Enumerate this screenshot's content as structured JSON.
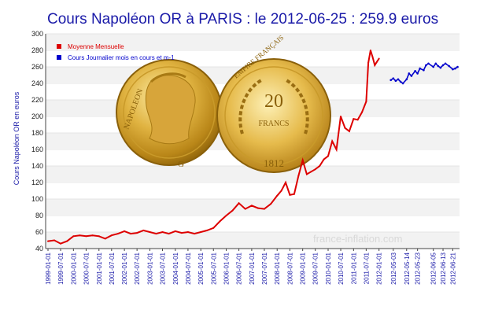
{
  "chart_data": {
    "type": "line",
    "title": "Cours Napoléon OR à PARIS :    le 2012-06-25  :  259.9 euros",
    "ylabel": "Cours Napoléon OR en euros",
    "ylim": [
      40,
      300
    ],
    "yticks": [
      40,
      60,
      80,
      100,
      120,
      140,
      160,
      180,
      200,
      220,
      240,
      260,
      280,
      300
    ],
    "watermark": "france-inflation.com",
    "legend_position": "top-left",
    "grid": "horizontal",
    "x_left_ticks": [
      "1999-01-01",
      "1999-07-01",
      "2000-01-01",
      "2000-07-01",
      "2001-01-01",
      "2001-07-01",
      "2002-01-01",
      "2002-07-01",
      "2003-01-01",
      "2003-07-01",
      "2004-01-01",
      "2004-07-01",
      "2005-01-01",
      "2005-07-01",
      "2006-01-01",
      "2006-07-01",
      "2007-01-01",
      "2007-07-01",
      "2008-01-01",
      "2008-07-01",
      "2009-01-01",
      "2009-07-01",
      "2010-01-01",
      "2010-07-01",
      "2011-01-01",
      "2011-07-01",
      "2012-01-01"
    ],
    "x_right_ticks": [
      "2012-05-03",
      "2012-05-14",
      "2012-05-23",
      "2012-06-05",
      "2012-06-13",
      "2012-06-21"
    ],
    "series": [
      {
        "name": "Moyenne Mensuelle",
        "color": "#dd0000",
        "x": [
          "1999-01",
          "1999-04",
          "1999-07",
          "1999-10",
          "2000-01",
          "2000-04",
          "2000-07",
          "2000-10",
          "2001-01",
          "2001-04",
          "2001-07",
          "2001-10",
          "2002-01",
          "2002-04",
          "2002-07",
          "2002-10",
          "2003-01",
          "2003-04",
          "2003-07",
          "2003-10",
          "2004-01",
          "2004-04",
          "2004-07",
          "2004-10",
          "2005-01",
          "2005-04",
          "2005-07",
          "2005-10",
          "2006-01",
          "2006-04",
          "2006-07",
          "2006-10",
          "2007-01",
          "2007-04",
          "2007-07",
          "2007-10",
          "2008-01",
          "2008-03",
          "2008-05",
          "2008-07",
          "2008-09",
          "2008-11",
          "2009-01",
          "2009-03",
          "2009-05",
          "2009-07",
          "2009-09",
          "2009-11",
          "2010-01",
          "2010-03",
          "2010-05",
          "2010-07",
          "2010-09",
          "2010-11",
          "2011-01",
          "2011-03",
          "2011-05",
          "2011-07",
          "2011-08",
          "2011-09",
          "2011-10",
          "2011-11",
          "2011-12",
          "2012-01"
        ],
        "values": [
          49,
          50,
          46,
          49,
          55,
          56,
          55,
          56,
          55,
          52,
          56,
          58,
          61,
          58,
          59,
          62,
          60,
          58,
          60,
          58,
          61,
          59,
          60,
          58,
          60,
          62,
          65,
          73,
          80,
          86,
          95,
          88,
          92,
          89,
          88,
          94,
          104,
          110,
          120,
          105,
          106,
          128,
          147,
          130,
          133,
          136,
          140,
          148,
          152,
          170,
          160,
          200,
          186,
          182,
          197,
          196,
          205,
          218,
          265,
          280,
          272,
          262,
          266,
          270
        ]
      },
      {
        "name": "Cours Journalier mois en cours et m-1",
        "color": "#0000cc",
        "x": [
          "2012-05-01",
          "2012-05-03",
          "2012-05-05",
          "2012-05-07",
          "2012-05-09",
          "2012-05-11",
          "2012-05-14",
          "2012-05-16",
          "2012-05-18",
          "2012-05-21",
          "2012-05-23",
          "2012-05-25",
          "2012-05-28",
          "2012-05-30",
          "2012-06-01",
          "2012-06-05",
          "2012-06-07",
          "2012-06-09",
          "2012-06-11",
          "2012-06-13",
          "2012-06-15",
          "2012-06-18",
          "2012-06-21",
          "2012-06-23",
          "2012-06-25"
        ],
        "values": [
          244,
          246,
          243,
          245,
          242,
          240,
          245,
          252,
          249,
          255,
          252,
          258,
          256,
          262,
          264,
          260,
          264,
          261,
          259,
          262,
          264,
          261,
          257,
          258,
          259.9
        ]
      }
    ]
  }
}
